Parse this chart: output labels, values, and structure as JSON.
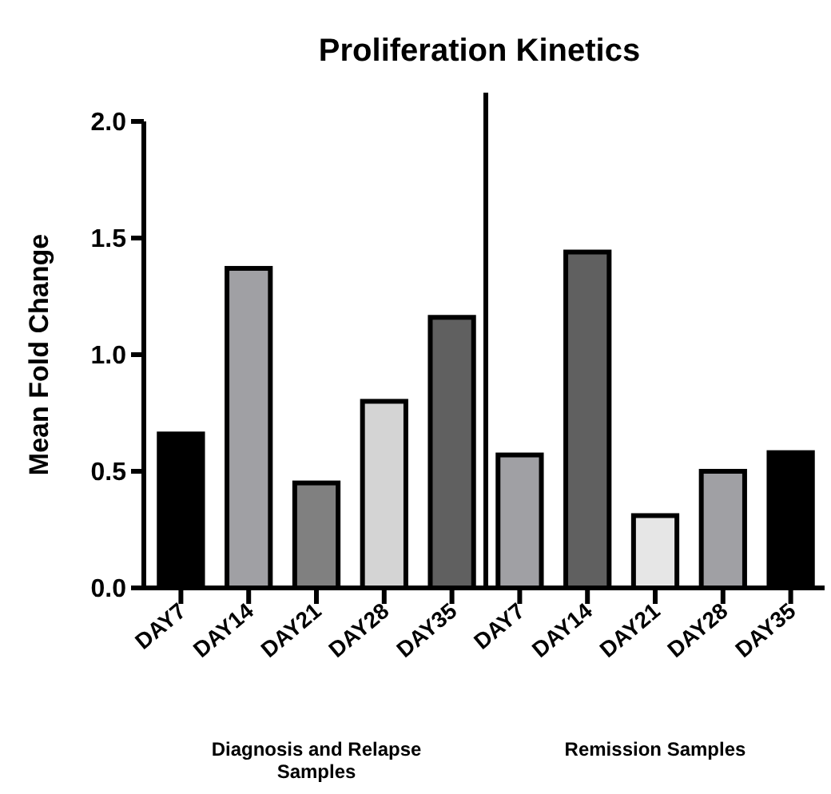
{
  "chart_data": {
    "type": "bar",
    "title": "Proliferation Kinetics",
    "ylabel": "Mean Fold Change",
    "categories": [
      "DAY7",
      "DAY14",
      "DAY21",
      "DAY28",
      "DAY35",
      "DAY7",
      "DAY14",
      "DAY21",
      "DAY28",
      "DAY35"
    ],
    "values": [
      0.66,
      1.37,
      0.45,
      0.8,
      1.16,
      0.57,
      1.44,
      0.31,
      0.5,
      0.58
    ],
    "colors": [
      "#000000",
      "#a0a0a4",
      "#808080",
      "#d4d4d4",
      "#606060",
      "#a0a0a4",
      "#606060",
      "#e6e6e6",
      "#a0a0a4",
      "#000000"
    ],
    "ylim": [
      0,
      2
    ],
    "yticks": [
      {
        "value": 0,
        "label": "0.0"
      },
      {
        "value": 0.5,
        "label": "0.5"
      },
      {
        "value": 1,
        "label": "1.0"
      },
      {
        "value": 1.5,
        "label": "1.5"
      },
      {
        "value": 2,
        "label": "2.0"
      }
    ],
    "annotations": [
      "Diagnosis and Relapse Samples",
      "Remission Samples"
    ]
  }
}
